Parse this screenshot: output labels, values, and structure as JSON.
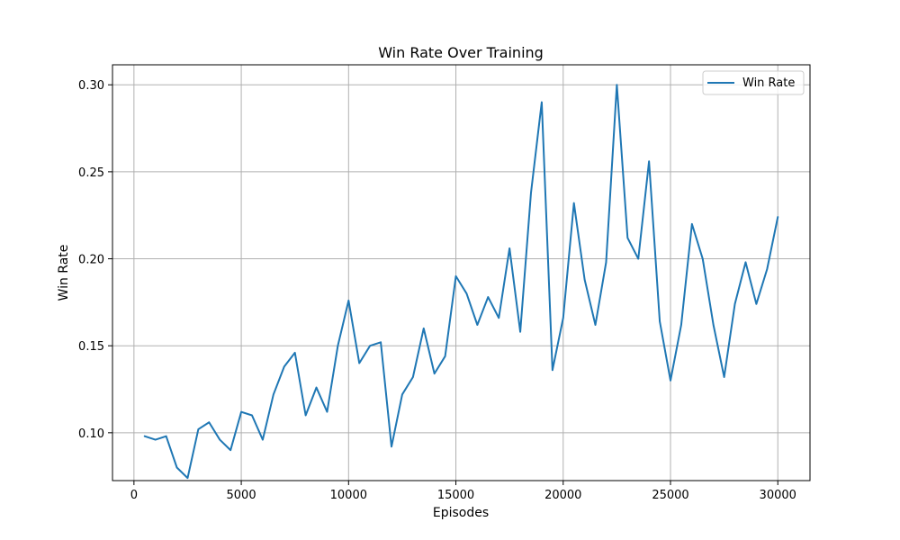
{
  "chart_data": {
    "type": "line",
    "title": "Win Rate Over Training",
    "xlabel": "Episodes",
    "ylabel": "Win Rate",
    "xlim": [
      -1000,
      31500
    ],
    "ylim": [
      0.0725,
      0.3115
    ],
    "xticks": [
      0,
      5000,
      10000,
      15000,
      20000,
      25000,
      30000
    ],
    "yticks": [
      0.1,
      0.15,
      0.2,
      0.25,
      0.3
    ],
    "ytick_labels": [
      "0.10",
      "0.15",
      "0.20",
      "0.25",
      "0.30"
    ],
    "grid": true,
    "legend_position": "top-right",
    "x": [
      500,
      1000,
      1500,
      2000,
      2500,
      3000,
      3500,
      4000,
      4500,
      5000,
      5500,
      6000,
      6500,
      7000,
      7500,
      8000,
      8500,
      9000,
      9500,
      10000,
      10500,
      11000,
      11500,
      12000,
      12500,
      13000,
      13500,
      14000,
      14500,
      15000,
      15500,
      16000,
      16500,
      17000,
      17500,
      18000,
      18500,
      19000,
      19500,
      20000,
      20500,
      21000,
      21500,
      22000,
      22500,
      23000,
      23500,
      24000,
      24500,
      25000,
      25500,
      26000,
      26500,
      27000,
      27500,
      28000,
      28500,
      29000,
      29500,
      30000
    ],
    "series": [
      {
        "name": "Win Rate",
        "color": "#1f77b4",
        "values": [
          0.098,
          0.096,
          0.098,
          0.08,
          0.074,
          0.102,
          0.106,
          0.096,
          0.09,
          0.112,
          0.11,
          0.096,
          0.122,
          0.138,
          0.146,
          0.11,
          0.126,
          0.112,
          0.15,
          0.176,
          0.14,
          0.15,
          0.152,
          0.092,
          0.122,
          0.132,
          0.16,
          0.134,
          0.144,
          0.19,
          0.18,
          0.162,
          0.178,
          0.166,
          0.206,
          0.158,
          0.238,
          0.29,
          0.136,
          0.166,
          0.232,
          0.188,
          0.162,
          0.198,
          0.3,
          0.212,
          0.2,
          0.256,
          0.164,
          0.13,
          0.162,
          0.22,
          0.2,
          0.162,
          0.132,
          0.174,
          0.198,
          0.174,
          0.194,
          0.224
        ]
      }
    ]
  }
}
